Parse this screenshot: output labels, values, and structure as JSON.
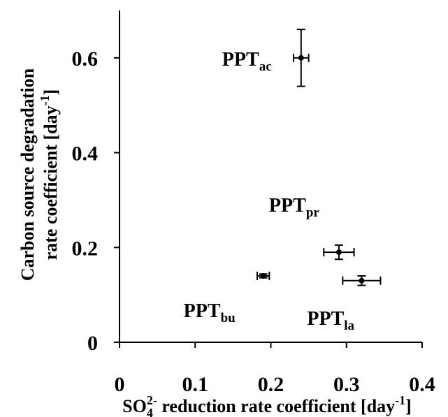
{
  "chart_data": {
    "type": "scatter",
    "title": "",
    "xlabel": {
      "main": "SO",
      "sub": "4",
      "sup": "2-",
      "rest": " reduction rate coefficient [day",
      "unit_sup": "-1",
      "close": "]"
    },
    "ylabel": {
      "line1": "Carbon source degradation",
      "line2_main": "rate coefficient [day",
      "line2_sup": "-1",
      "line2_close": "]"
    },
    "xlim": [
      0,
      0.4
    ],
    "ylim": [
      0,
      0.7
    ],
    "xticks": [
      0,
      0.1,
      0.2,
      0.3,
      0.4
    ],
    "xtick_labels": [
      "0",
      "0.1",
      "0.2",
      "0.3",
      "0.4"
    ],
    "yticks": [
      0,
      0.2,
      0.4,
      0.6
    ],
    "ytick_labels": [
      "0",
      "0.2",
      "0.4",
      "0.6"
    ],
    "grid": false,
    "legend": "none",
    "points": [
      {
        "id": "ac",
        "label": "PPT",
        "sub": "ac",
        "x": 0.24,
        "y": 0.6,
        "xerr": 0.01,
        "yerr": 0.06
      },
      {
        "id": "pr",
        "label": "PPT",
        "sub": "pr",
        "x": 0.29,
        "y": 0.19,
        "xerr": 0.02,
        "yerr": 0.015
      },
      {
        "id": "bu",
        "label": "PPT",
        "sub": "bu",
        "x": 0.19,
        "y": 0.14,
        "xerr": 0.008,
        "yerr": 0.004
      },
      {
        "id": "la",
        "label": "PPT",
        "sub": "la",
        "x": 0.32,
        "y": 0.13,
        "xerr": 0.025,
        "yerr": 0.01
      }
    ],
    "colors": {
      "marker": "#000000",
      "axis": "#000000"
    }
  }
}
